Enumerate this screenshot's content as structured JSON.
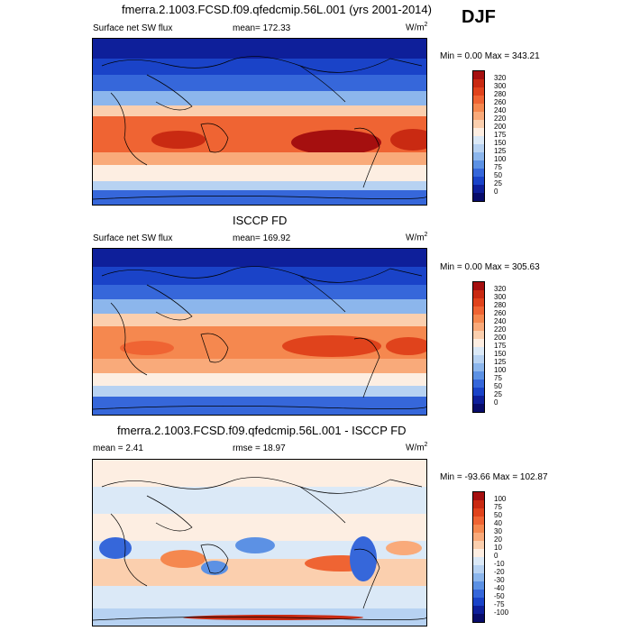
{
  "season": "DJF",
  "panels": [
    {
      "title": "fmerra.2.1003.FCSD.f09.qfedcmip.56L.001 (yrs 2001-2014)",
      "left_label": "Surface net SW flux",
      "stat_label": "mean= 172.33",
      "units": "W/m",
      "units_sup": "2",
      "minmax": "Min =   0.00 Max = 343.21",
      "colorbar": {
        "labels": [
          "320",
          "300",
          "280",
          "260",
          "240",
          "220",
          "200",
          "175",
          "150",
          "125",
          "100",
          "75",
          "50",
          "25",
          "0"
        ],
        "colors": [
          "#a50f0f",
          "#c92a12",
          "#e0431c",
          "#ef6433",
          "#f5884f",
          "#f9aa7a",
          "#fbcfae",
          "#fdeee2",
          "#dbe9f7",
          "#b7d2f2",
          "#8cb6ec",
          "#5c91e4",
          "#3667da",
          "#1a43c8",
          "#0e1f9a",
          "#080c6a"
        ]
      }
    },
    {
      "title": "ISCCP FD",
      "left_label": "Surface net SW flux",
      "stat_label": "mean= 169.92",
      "units": "W/m",
      "units_sup": "2",
      "minmax": "Min =   0.00 Max = 305.63",
      "colorbar": {
        "labels": [
          "320",
          "300",
          "280",
          "260",
          "240",
          "220",
          "200",
          "175",
          "150",
          "125",
          "100",
          "75",
          "50",
          "25",
          "0"
        ],
        "colors": [
          "#a50f0f",
          "#c92a12",
          "#e0431c",
          "#ef6433",
          "#f5884f",
          "#f9aa7a",
          "#fbcfae",
          "#fdeee2",
          "#dbe9f7",
          "#b7d2f2",
          "#8cb6ec",
          "#5c91e4",
          "#3667da",
          "#1a43c8",
          "#0e1f9a",
          "#080c6a"
        ]
      }
    },
    {
      "title": "fmerra.2.1003.FCSD.f09.qfedcmip.56L.001 - ISCCP FD",
      "left_label": "mean =   2.41",
      "stat_label": "rmse =  18.97",
      "units": "W/m",
      "units_sup": "2",
      "minmax": "Min = -93.66 Max = 102.87",
      "colorbar": {
        "labels": [
          "100",
          "75",
          "50",
          "40",
          "30",
          "20",
          "10",
          "0",
          "-10",
          "-20",
          "-30",
          "-40",
          "-50",
          "-75",
          "-100"
        ],
        "colors": [
          "#a50f0f",
          "#c92a12",
          "#e0431c",
          "#ef6433",
          "#f5884f",
          "#f9aa7a",
          "#fbcfae",
          "#fdeee2",
          "#dbe9f7",
          "#b7d2f2",
          "#8cb6ec",
          "#5c91e4",
          "#3667da",
          "#1a43c8",
          "#0e1f9a",
          "#080c6a"
        ]
      }
    }
  ]
}
